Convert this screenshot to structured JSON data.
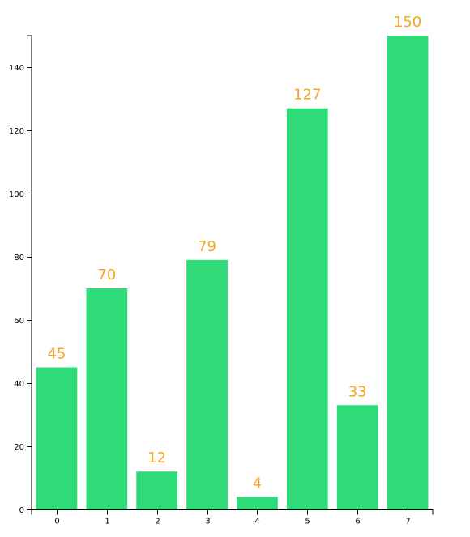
{
  "chart_data": {
    "type": "bar",
    "categories": [
      "0",
      "1",
      "2",
      "3",
      "4",
      "5",
      "6",
      "7"
    ],
    "values": [
      45,
      70,
      12,
      79,
      4,
      127,
      33,
      150
    ],
    "title": "",
    "xlabel": "",
    "ylabel": "",
    "ylim": [
      0,
      150
    ],
    "yticks": [
      0,
      20,
      40,
      60,
      80,
      100,
      120,
      140
    ],
    "grid": false,
    "legend": "none",
    "colors": {
      "bar": "#2fdb78",
      "value_label": "#f5a623",
      "axis": "#000000"
    }
  }
}
